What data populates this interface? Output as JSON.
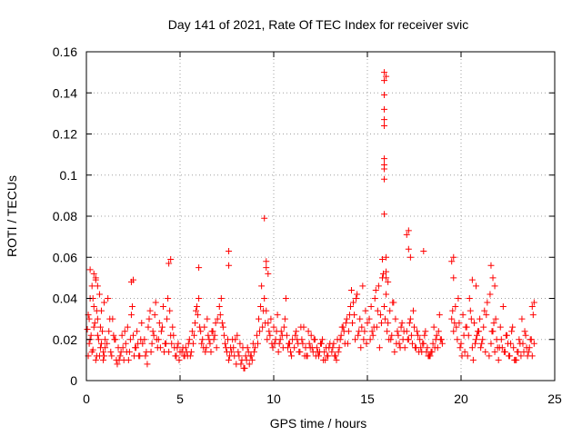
{
  "chart_data": {
    "type": "scatter",
    "title": "Day 141 of 2021, Rate Of TEC Index for receiver svic",
    "xlabel": "GPS time / hours",
    "ylabel": "ROTI / TECUs",
    "xlim": [
      0,
      25
    ],
    "ylim": [
      0,
      0.16
    ],
    "xticks": [
      0,
      5,
      10,
      15,
      20,
      25
    ],
    "yticks": [
      0,
      0.02,
      0.04,
      0.06,
      0.08,
      0.1,
      0.12,
      0.14,
      0.16
    ],
    "grid": true,
    "legend": "none",
    "marker": "plus",
    "color": "#ff0000",
    "series": [
      {
        "x": [
          0.05,
          0.1,
          0.15,
          0.2,
          0.25,
          0.3,
          0.35,
          0.4,
          0.45,
          0.5,
          0.55,
          0.6,
          0.65,
          0.7,
          0.75,
          0.8,
          0.85,
          0.9,
          0.95,
          1.0,
          0.1,
          0.2,
          0.3,
          0.4,
          0.5,
          0.6,
          0.7,
          0.8,
          0.9,
          1.0,
          0.15,
          0.35,
          0.55,
          0.75,
          0.95,
          1.1,
          1.2,
          1.3,
          1.4,
          1.5,
          1.6,
          1.7,
          1.8,
          1.9,
          2.0,
          2.1,
          2.2,
          2.3,
          2.4,
          2.5,
          2.6,
          2.7,
          2.8,
          2.9,
          3.0,
          1.15,
          1.35,
          1.55,
          1.75,
          1.95,
          2.15,
          2.35,
          2.55,
          2.75,
          2.95,
          1.25,
          1.45,
          1.65,
          1.85,
          2.05,
          2.25,
          2.45,
          2.65,
          2.85,
          3.1,
          3.2,
          3.3,
          3.4,
          3.5,
          3.6,
          3.7,
          3.8,
          3.9,
          4.0,
          4.1,
          4.2,
          4.3,
          4.4,
          4.5,
          4.6,
          4.7,
          4.8,
          4.9,
          5.0,
          3.15,
          3.35,
          3.55,
          3.75,
          3.95,
          4.15,
          4.35,
          4.55,
          4.75,
          4.95,
          3.25,
          3.45,
          3.65,
          3.85,
          4.05,
          4.25,
          4.45,
          4.65,
          4.85,
          5.1,
          5.2,
          5.3,
          5.4,
          5.5,
          5.6,
          5.7,
          5.8,
          5.9,
          6.0,
          6.1,
          6.2,
          6.3,
          6.4,
          6.5,
          6.6,
          6.7,
          6.8,
          6.9,
          7.0,
          5.15,
          5.35,
          5.55,
          5.75,
          5.95,
          6.15,
          6.35,
          6.55,
          6.75,
          6.95,
          5.25,
          5.45,
          5.65,
          5.85,
          6.05,
          6.25,
          6.45,
          6.65,
          6.85,
          7.1,
          7.2,
          7.3,
          7.4,
          7.5,
          7.6,
          7.7,
          7.8,
          7.9,
          8.0,
          8.1,
          8.2,
          8.3,
          8.4,
          8.5,
          8.6,
          8.7,
          8.8,
          8.9,
          9.0,
          7.15,
          7.35,
          7.55,
          7.75,
          7.95,
          8.15,
          8.35,
          8.55,
          8.75,
          8.95,
          7.25,
          7.45,
          7.65,
          7.85,
          8.05,
          8.25,
          8.45,
          8.65,
          8.85,
          9.1,
          9.2,
          9.3,
          9.4,
          9.5,
          9.6,
          9.7,
          9.8,
          9.9,
          10.0,
          10.1,
          10.2,
          10.3,
          10.4,
          10.5,
          10.6,
          10.7,
          10.8,
          10.9,
          11.0,
          9.15,
          9.35,
          9.55,
          9.75,
          9.95,
          10.15,
          10.35,
          10.55,
          10.75,
          10.95,
          9.25,
          9.45,
          9.65,
          9.85,
          10.05,
          10.25,
          10.45,
          10.65,
          10.85,
          11.1,
          11.2,
          11.3,
          11.4,
          11.5,
          11.6,
          11.7,
          11.8,
          11.9,
          12.0,
          12.1,
          12.2,
          12.3,
          12.4,
          12.5,
          12.6,
          12.7,
          12.8,
          12.9,
          13.0,
          11.15,
          11.35,
          11.55,
          11.75,
          11.95,
          12.15,
          12.35,
          12.55,
          12.75,
          12.95,
          11.25,
          11.45,
          11.65,
          11.85,
          12.05,
          12.25,
          12.45,
          12.65,
          12.85,
          13.1,
          13.2,
          13.3,
          13.4,
          13.5,
          13.6,
          13.7,
          13.8,
          13.9,
          14.0,
          14.1,
          14.2,
          14.3,
          14.4,
          14.5,
          14.6,
          14.7,
          14.8,
          14.9,
          15.0,
          13.15,
          13.35,
          13.55,
          13.75,
          13.95,
          14.15,
          14.35,
          14.55,
          14.75,
          14.95,
          13.25,
          13.45,
          13.65,
          13.85,
          14.05,
          14.25,
          14.45,
          14.65,
          14.85,
          15.1,
          15.2,
          15.3,
          15.4,
          15.5,
          15.6,
          15.7,
          15.8,
          15.9,
          16.0,
          16.1,
          16.2,
          16.3,
          16.4,
          16.5,
          16.6,
          16.7,
          16.8,
          16.9,
          17.0,
          15.15,
          15.35,
          15.55,
          15.75,
          15.95,
          16.15,
          16.35,
          16.55,
          16.75,
          16.95,
          15.25,
          15.45,
          15.65,
          15.85,
          16.05,
          16.25,
          16.45,
          16.65,
          16.85,
          17.1,
          17.2,
          17.3,
          17.4,
          17.5,
          17.6,
          17.7,
          17.8,
          17.9,
          18.0,
          18.1,
          18.2,
          18.3,
          18.4,
          18.5,
          18.6,
          18.7,
          18.8,
          18.9,
          19.0,
          17.15,
          17.35,
          17.55,
          17.75,
          17.95,
          18.15,
          18.35,
          18.55,
          18.75,
          18.95,
          17.25,
          17.45,
          17.65,
          17.85,
          18.05,
          18.25,
          18.45,
          18.65,
          18.85,
          19.5,
          19.6,
          19.7,
          19.8,
          19.9,
          20.0,
          20.1,
          20.2,
          20.3,
          20.4,
          20.5,
          20.6,
          20.7,
          20.8,
          20.9,
          21.0,
          21.1,
          21.2,
          21.3,
          21.4,
          19.55,
          19.75,
          19.95,
          20.15,
          20.35,
          20.55,
          20.75,
          20.95,
          21.15,
          21.35,
          19.65,
          19.85,
          20.05,
          20.25,
          20.45,
          20.65,
          20.85,
          21.05,
          21.25,
          21.5,
          21.6,
          21.7,
          21.8,
          21.9,
          22.0,
          22.1,
          22.2,
          22.3,
          22.4,
          22.5,
          22.6,
          22.7,
          22.8,
          22.9,
          23.0,
          23.1,
          23.2,
          23.3,
          23.4,
          23.5,
          23.6,
          23.7,
          23.8,
          23.9,
          21.55,
          21.75,
          21.95,
          22.15,
          22.35,
          22.55,
          22.75,
          22.95,
          23.15,
          23.35,
          23.55,
          23.75,
          21.65,
          21.85,
          22.05,
          22.25,
          22.45,
          22.65,
          22.85,
          23.05,
          23.25,
          23.45,
          23.65,
          23.85,
          0.2,
          0.4,
          0.5,
          0.6,
          2.4,
          2.5,
          4.4,
          4.5,
          6.0,
          7.6,
          7.6,
          9.5,
          9.6,
          9.6,
          9.7,
          15.8,
          15.9,
          15.9,
          15.9,
          15.9,
          15.9,
          15.9,
          15.9,
          15.9,
          15.9,
          15.9,
          15.9,
          16.0,
          16.0,
          16.0,
          16.0,
          16.1,
          17.1,
          17.2,
          17.2,
          17.3,
          18.0,
          19.5,
          19.6,
          19.6,
          20.6,
          20.8,
          21.6,
          21.7,
          21.8,
          23.9,
          23.8
        ],
        "y": [
          0.025,
          0.032,
          0.018,
          0.04,
          0.022,
          0.046,
          0.015,
          0.036,
          0.028,
          0.05,
          0.012,
          0.03,
          0.02,
          0.042,
          0.016,
          0.034,
          0.024,
          0.014,
          0.038,
          0.02,
          0.012,
          0.02,
          0.014,
          0.026,
          0.01,
          0.022,
          0.012,
          0.018,
          0.01,
          0.016,
          0.03,
          0.04,
          0.034,
          0.026,
          0.012,
          0.018,
          0.024,
          0.014,
          0.03,
          0.02,
          0.01,
          0.016,
          0.012,
          0.022,
          0.01,
          0.018,
          0.026,
          0.014,
          0.032,
          0.022,
          0.016,
          0.024,
          0.012,
          0.02,
          0.018,
          0.04,
          0.012,
          0.02,
          0.01,
          0.016,
          0.014,
          0.02,
          0.012,
          0.018,
          0.028,
          0.03,
          0.022,
          0.008,
          0.014,
          0.024,
          0.01,
          0.036,
          0.016,
          0.012,
          0.02,
          0.014,
          0.026,
          0.034,
          0.018,
          0.022,
          0.038,
          0.016,
          0.028,
          0.024,
          0.036,
          0.018,
          0.03,
          0.014,
          0.022,
          0.026,
          0.016,
          0.012,
          0.018,
          0.014,
          0.012,
          0.03,
          0.024,
          0.02,
          0.016,
          0.014,
          0.04,
          0.018,
          0.012,
          0.01,
          0.008,
          0.014,
          0.032,
          0.02,
          0.026,
          0.018,
          0.034,
          0.022,
          0.016,
          0.014,
          0.012,
          0.016,
          0.012,
          0.02,
          0.014,
          0.018,
          0.028,
          0.036,
          0.04,
          0.024,
          0.02,
          0.026,
          0.016,
          0.022,
          0.018,
          0.024,
          0.02,
          0.028,
          0.03,
          0.016,
          0.014,
          0.012,
          0.022,
          0.032,
          0.018,
          0.014,
          0.02,
          0.024,
          0.016,
          0.012,
          0.018,
          0.024,
          0.034,
          0.026,
          0.016,
          0.03,
          0.014,
          0.022,
          0.036,
          0.04,
          0.026,
          0.018,
          0.014,
          0.01,
          0.016,
          0.02,
          0.012,
          0.008,
          0.014,
          0.018,
          0.01,
          0.006,
          0.012,
          0.016,
          0.008,
          0.012,
          0.018,
          0.016,
          0.032,
          0.022,
          0.02,
          0.014,
          0.02,
          0.012,
          0.016,
          0.01,
          0.012,
          0.014,
          0.028,
          0.016,
          0.012,
          0.016,
          0.022,
          0.008,
          0.006,
          0.014,
          0.01,
          0.022,
          0.03,
          0.036,
          0.026,
          0.04,
          0.034,
          0.028,
          0.022,
          0.018,
          0.026,
          0.02,
          0.032,
          0.018,
          0.024,
          0.016,
          0.03,
          0.022,
          0.018,
          0.014,
          0.02,
          0.018,
          0.046,
          0.028,
          0.024,
          0.016,
          0.024,
          0.02,
          0.026,
          0.016,
          0.012,
          0.024,
          0.034,
          0.02,
          0.03,
          0.018,
          0.014,
          0.022,
          0.04,
          0.018,
          0.016,
          0.024,
          0.018,
          0.014,
          0.02,
          0.026,
          0.016,
          0.012,
          0.018,
          0.022,
          0.014,
          0.02,
          0.016,
          0.012,
          0.018,
          0.02,
          0.014,
          0.016,
          0.012,
          0.018,
          0.022,
          0.014,
          0.018,
          0.012,
          0.016,
          0.02,
          0.014,
          0.018,
          0.01,
          0.016,
          0.02,
          0.026,
          0.012,
          0.024,
          0.016,
          0.012,
          0.014,
          0.01,
          0.012,
          0.014,
          0.018,
          0.012,
          0.02,
          0.016,
          0.022,
          0.026,
          0.018,
          0.03,
          0.024,
          0.036,
          0.028,
          0.032,
          0.04,
          0.022,
          0.03,
          0.026,
          0.02,
          0.034,
          0.028,
          0.016,
          0.01,
          0.02,
          0.024,
          0.018,
          0.044,
          0.02,
          0.024,
          0.046,
          0.018,
          0.012,
          0.014,
          0.026,
          0.028,
          0.032,
          0.038,
          0.042,
          0.016,
          0.024,
          0.03,
          0.036,
          0.022,
          0.04,
          0.026,
          0.046,
          0.032,
          0.05,
          0.036,
          0.042,
          0.028,
          0.034,
          0.022,
          0.038,
          0.03,
          0.024,
          0.018,
          0.026,
          0.02,
          0.016,
          0.02,
          0.026,
          0.034,
          0.028,
          0.03,
          0.02,
          0.038,
          0.018,
          0.016,
          0.024,
          0.024,
          0.044,
          0.016,
          0.052,
          0.024,
          0.02,
          0.014,
          0.022,
          0.028,
          0.024,
          0.02,
          0.03,
          0.018,
          0.026,
          0.016,
          0.022,
          0.02,
          0.014,
          0.018,
          0.024,
          0.016,
          0.012,
          0.014,
          0.018,
          0.016,
          0.022,
          0.024,
          0.02,
          0.018,
          0.02,
          0.022,
          0.016,
          0.014,
          0.018,
          0.014,
          0.012,
          0.026,
          0.016,
          0.02,
          0.028,
          0.034,
          0.024,
          0.016,
          0.022,
          0.012,
          0.014,
          0.02,
          0.032,
          0.03,
          0.024,
          0.036,
          0.02,
          0.028,
          0.018,
          0.032,
          0.014,
          0.026,
          0.022,
          0.034,
          0.016,
          0.028,
          0.02,
          0.024,
          0.03,
          0.018,
          0.026,
          0.014,
          0.038,
          0.034,
          0.026,
          0.016,
          0.022,
          0.012,
          0.03,
          0.018,
          0.024,
          0.02,
          0.032,
          0.028,
          0.04,
          0.012,
          0.026,
          0.04,
          0.01,
          0.022,
          0.016,
          0.034,
          0.012,
          0.018,
          0.024,
          0.014,
          0.02,
          0.01,
          0.026,
          0.016,
          0.014,
          0.022,
          0.018,
          0.012,
          0.024,
          0.016,
          0.01,
          0.014,
          0.02,
          0.012,
          0.018,
          0.024,
          0.016,
          0.014,
          0.02,
          0.012,
          0.018,
          0.042,
          0.028,
          0.016,
          0.02,
          0.014,
          0.012,
          0.026,
          0.01,
          0.018,
          0.014,
          0.012,
          0.02,
          0.024,
          0.03,
          0.016,
          0.036,
          0.022,
          0.018,
          0.01,
          0.014,
          0.03,
          0.022,
          0.016,
          0.032,
          0.054,
          0.052,
          0.049,
          0.046,
          0.048,
          0.049,
          0.057,
          0.059,
          0.055,
          0.063,
          0.056,
          0.079,
          0.058,
          0.055,
          0.052,
          0.059,
          0.081,
          0.098,
          0.103,
          0.105,
          0.108,
          0.124,
          0.127,
          0.132,
          0.139,
          0.146,
          0.15,
          0.148,
          0.06,
          0.053,
          0.05,
          0.048,
          0.071,
          0.073,
          0.064,
          0.06,
          0.063,
          0.058,
          0.06,
          0.05,
          0.049,
          0.046,
          0.056,
          0.05,
          0.046,
          0.038,
          0.036
        ]
      }
    ]
  }
}
